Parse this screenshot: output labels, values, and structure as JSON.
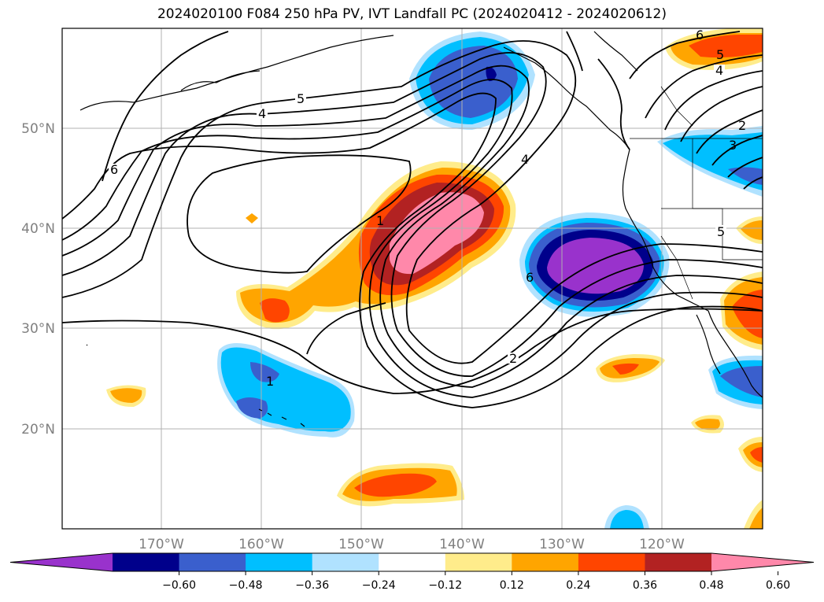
{
  "title": "2024020100 F084 250 hPa PV, IVT Landfall PC (2024020412 - 2024020612)",
  "lon_ticks": [
    "170°W",
    "160°W",
    "150°W",
    "140°W",
    "130°W",
    "120°W"
  ],
  "lat_ticks": [
    "50°N",
    "40°N",
    "30°N",
    "20°N"
  ],
  "colorbar": {
    "colors": [
      "#9932cc",
      "#00008b",
      "#3a5fcd",
      "#00bfff",
      "#b0e2ff",
      "#ffffff",
      "#ffec8b",
      "#ffa500",
      "#ff4500",
      "#b22222",
      "#ff88aa"
    ],
    "labels": [
      "-0.60",
      "-0.48",
      "-0.36",
      "-0.24",
      "-0.12",
      "0.12",
      "0.24",
      "0.36",
      "0.48",
      "0.60"
    ],
    "extend": "both"
  },
  "contour_labels": [
    "5",
    "4",
    "6",
    "1",
    "4",
    "6",
    "2",
    "1",
    "6",
    "5",
    "4",
    "2",
    "3",
    "5"
  ]
}
